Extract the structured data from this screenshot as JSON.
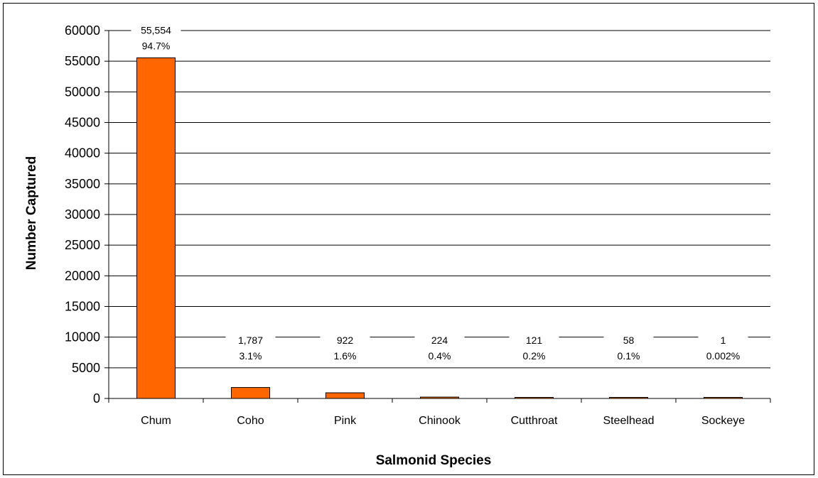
{
  "chart_data": {
    "type": "bar",
    "title": "",
    "xlabel": "Salmonid Species",
    "ylabel": "Number Captured",
    "ylim": [
      0,
      60000
    ],
    "ytick_step": 5000,
    "grid": true,
    "legend": "none",
    "bar_color": "#FF6600",
    "categories": [
      "Chum",
      "Coho",
      "Pink",
      "Chinook",
      "Cutthroat",
      "Steelhead",
      "Sockeye"
    ],
    "values": [
      55554,
      1787,
      922,
      224,
      121,
      58,
      1
    ],
    "data_labels": [
      {
        "count": "55,554",
        "percent": "94.7%"
      },
      {
        "count": "1,787",
        "percent": "3.1%"
      },
      {
        "count": "922",
        "percent": "1.6%"
      },
      {
        "count": "224",
        "percent": "0.4%"
      },
      {
        "count": "121",
        "percent": "0.2%"
      },
      {
        "count": "58",
        "percent": "0.1%"
      },
      {
        "count": "1",
        "percent": "0.002%"
      }
    ]
  }
}
